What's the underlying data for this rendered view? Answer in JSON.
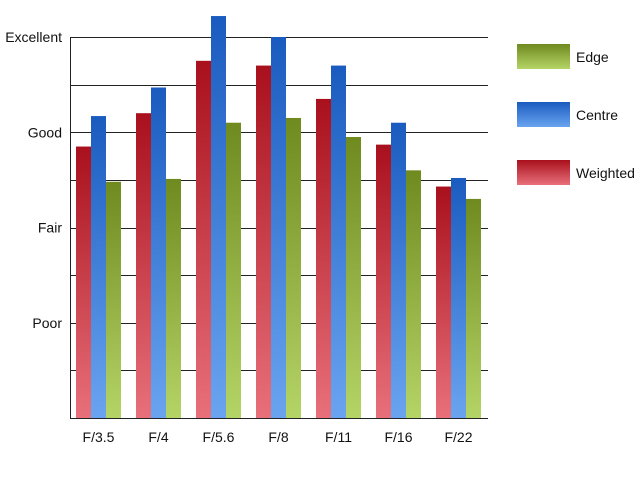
{
  "chart_data": {
    "type": "bar",
    "categories": [
      "F/3.5",
      "F/4",
      "F/5.6",
      "F/8",
      "F/11",
      "F/16",
      "F/22"
    ],
    "y_ticks": [
      {
        "label": "Poor",
        "value": 1
      },
      {
        "label": "Fair",
        "value": 2
      },
      {
        "label": "Good",
        "value": 3
      },
      {
        "label": "Excellent",
        "value": 4
      }
    ],
    "ylim": [
      0,
      4
    ],
    "grid": true,
    "legend_position": "right",
    "series": [
      {
        "name": "Weighted",
        "colors": [
          "#a8101c",
          "#e8707a"
        ],
        "values": [
          2.85,
          3.2,
          3.75,
          3.7,
          3.35,
          2.87,
          2.43
        ]
      },
      {
        "name": "Centre",
        "colors": [
          "#1a5bbf",
          "#6aa4f0"
        ],
        "values": [
          3.17,
          3.47,
          4.22,
          4.0,
          3.7,
          3.1,
          2.52
        ]
      },
      {
        "name": "Edge",
        "colors": [
          "#6f8a1f",
          "#b5d466"
        ],
        "values": [
          2.48,
          2.51,
          3.1,
          3.15,
          2.95,
          2.6,
          2.3
        ]
      }
    ],
    "legend_order": [
      "Edge",
      "Centre",
      "Weighted"
    ]
  }
}
